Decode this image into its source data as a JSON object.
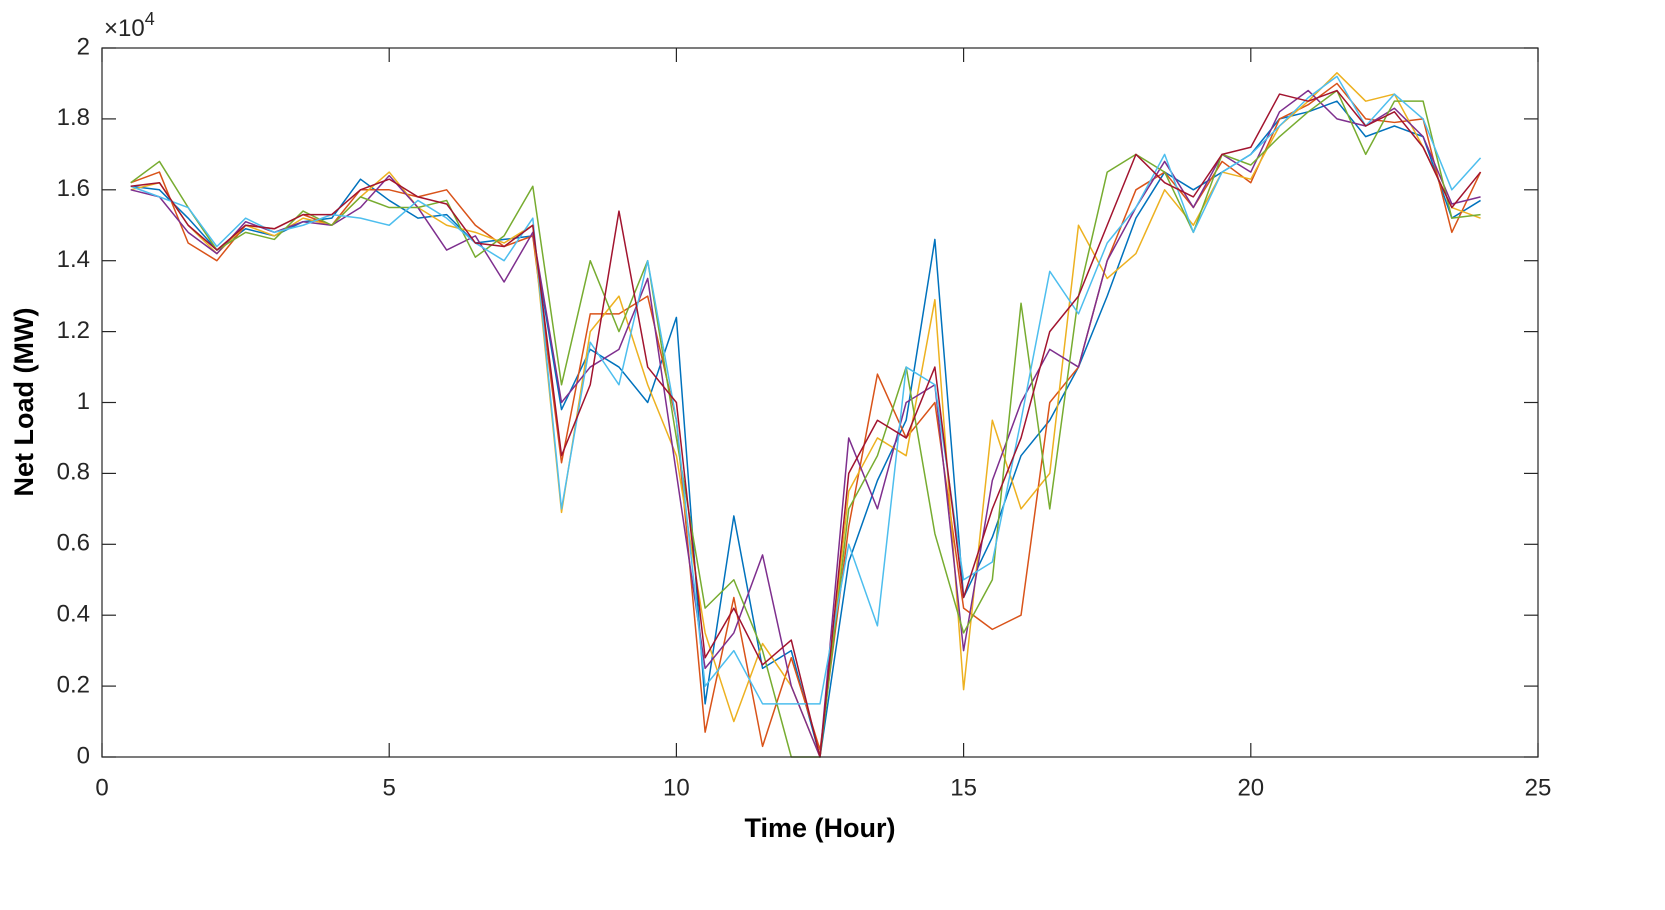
{
  "chart_data": {
    "type": "line",
    "x_label": "Time (Hour)",
    "y_label": "Net Load (MW)",
    "y_scale_base": "×10",
    "y_scale_exponent": "4",
    "xlim": [
      0,
      25
    ],
    "xticks": [
      0,
      5,
      10,
      15,
      20,
      25
    ],
    "ylim": [
      0,
      2
    ],
    "yticks": [
      0,
      0.2,
      0.4,
      0.6,
      0.8,
      1,
      1.2,
      1.4,
      1.6,
      1.8,
      2
    ],
    "box": true,
    "x": [
      0.5,
      1,
      1.5,
      2,
      2.5,
      3,
      3.5,
      4,
      4.5,
      5,
      5.5,
      6,
      6.5,
      7,
      7.5,
      8,
      8.5,
      9,
      9.5,
      10,
      10.5,
      11,
      11.5,
      12,
      12.5,
      13,
      13.5,
      14,
      14.5,
      15,
      15.5,
      16,
      16.5,
      17,
      17.5,
      18,
      18.5,
      19,
      19.5,
      20,
      20.5,
      21,
      21.5,
      22,
      22.5,
      23,
      23.5,
      24
    ],
    "series": [
      {
        "color": "#0072BD",
        "values": [
          1.61,
          1.6,
          1.52,
          1.43,
          1.49,
          1.47,
          1.51,
          1.52,
          1.63,
          1.57,
          1.52,
          1.53,
          1.45,
          1.46,
          1.47,
          0.98,
          1.15,
          1.1,
          1.0,
          1.24,
          0.15,
          0.68,
          0.25,
          0.3,
          0.0,
          0.55,
          0.78,
          0.95,
          1.46,
          0.45,
          0.62,
          0.85,
          0.95,
          1.1,
          1.3,
          1.52,
          1.65,
          1.6,
          1.65,
          1.7,
          1.8,
          1.82,
          1.85,
          1.75,
          1.78,
          1.75,
          1.52,
          1.57
        ]
      },
      {
        "color": "#D95319",
        "values": [
          1.62,
          1.65,
          1.45,
          1.4,
          1.5,
          1.49,
          1.53,
          1.5,
          1.6,
          1.6,
          1.58,
          1.6,
          1.5,
          1.44,
          1.47,
          0.83,
          1.25,
          1.25,
          1.3,
          0.95,
          0.07,
          0.45,
          0.03,
          0.28,
          0.02,
          0.65,
          1.08,
          0.9,
          1.0,
          0.42,
          0.36,
          0.4,
          1.0,
          1.1,
          1.4,
          1.6,
          1.65,
          1.55,
          1.68,
          1.62,
          1.8,
          1.84,
          1.9,
          1.8,
          1.79,
          1.8,
          1.48,
          1.65
        ]
      },
      {
        "color": "#EDB120",
        "values": [
          1.6,
          1.62,
          1.5,
          1.42,
          1.5,
          1.47,
          1.52,
          1.5,
          1.58,
          1.65,
          1.55,
          1.5,
          1.48,
          1.45,
          1.5,
          0.69,
          1.2,
          1.3,
          1.05,
          0.85,
          0.35,
          0.1,
          0.32,
          0.2,
          0.0,
          0.75,
          0.9,
          0.85,
          1.29,
          0.19,
          0.95,
          0.7,
          0.8,
          1.5,
          1.35,
          1.42,
          1.6,
          1.5,
          1.65,
          1.63,
          1.78,
          1.85,
          1.93,
          1.85,
          1.87,
          1.72,
          1.55,
          1.52
        ]
      },
      {
        "color": "#7E2F8E",
        "values": [
          1.6,
          1.58,
          1.48,
          1.42,
          1.51,
          1.48,
          1.51,
          1.5,
          1.55,
          1.64,
          1.55,
          1.43,
          1.47,
          1.34,
          1.48,
          1.0,
          1.1,
          1.15,
          1.35,
          0.8,
          0.25,
          0.35,
          0.57,
          0.2,
          0.0,
          0.9,
          0.7,
          1.0,
          1.05,
          0.3,
          0.78,
          1.0,
          1.15,
          1.1,
          1.4,
          1.55,
          1.68,
          1.55,
          1.7,
          1.65,
          1.82,
          1.88,
          1.8,
          1.78,
          1.83,
          1.75,
          1.56,
          1.58
        ]
      },
      {
        "color": "#77AC30",
        "values": [
          1.62,
          1.68,
          1.55,
          1.43,
          1.48,
          1.46,
          1.54,
          1.5,
          1.58,
          1.55,
          1.55,
          1.57,
          1.41,
          1.47,
          1.61,
          1.05,
          1.4,
          1.2,
          1.4,
          0.9,
          0.42,
          0.5,
          0.3,
          0.0,
          0.0,
          0.7,
          0.85,
          1.1,
          0.63,
          0.35,
          0.5,
          1.28,
          0.7,
          1.3,
          1.65,
          1.7,
          1.65,
          1.48,
          1.7,
          1.67,
          1.75,
          1.82,
          1.88,
          1.7,
          1.85,
          1.85,
          1.52,
          1.53
        ]
      },
      {
        "color": "#4DBEEE",
        "values": [
          1.61,
          1.58,
          1.55,
          1.44,
          1.52,
          1.48,
          1.5,
          1.53,
          1.52,
          1.5,
          1.57,
          1.52,
          1.45,
          1.4,
          1.52,
          0.7,
          1.17,
          1.05,
          1.4,
          0.95,
          0.2,
          0.3,
          0.15,
          0.15,
          0.15,
          0.6,
          0.37,
          1.1,
          1.05,
          0.5,
          0.55,
          0.95,
          1.37,
          1.25,
          1.45,
          1.55,
          1.7,
          1.48,
          1.65,
          1.7,
          1.78,
          1.86,
          1.92,
          1.78,
          1.87,
          1.8,
          1.6,
          1.69
        ]
      },
      {
        "color": "#A2142F",
        "values": [
          1.61,
          1.62,
          1.5,
          1.43,
          1.5,
          1.49,
          1.53,
          1.53,
          1.6,
          1.63,
          1.58,
          1.56,
          1.45,
          1.44,
          1.5,
          0.85,
          1.05,
          1.54,
          1.1,
          1.0,
          0.28,
          0.42,
          0.26,
          0.33,
          0.0,
          0.8,
          0.95,
          0.9,
          1.1,
          0.45,
          0.7,
          0.9,
          1.2,
          1.3,
          1.5,
          1.7,
          1.62,
          1.58,
          1.7,
          1.72,
          1.87,
          1.85,
          1.88,
          1.78,
          1.82,
          1.72,
          1.55,
          1.65
        ]
      }
    ]
  }
}
